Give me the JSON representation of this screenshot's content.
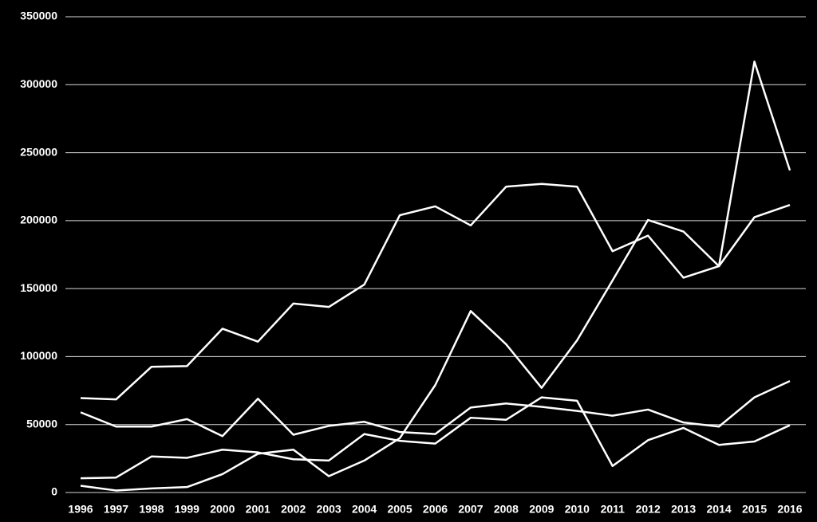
{
  "chart_data": {
    "type": "line",
    "categories": [
      "1996",
      "1997",
      "1998",
      "1999",
      "2000",
      "2001",
      "2002",
      "2003",
      "2004",
      "2005",
      "2006",
      "2007",
      "2008",
      "2009",
      "2010",
      "2011",
      "2012",
      "2013",
      "2014",
      "2015",
      "2016"
    ],
    "series": [
      {
        "color": "#ffffff",
        "values": [
          69500,
          68500,
          92500,
          93000,
          120500,
          111000,
          139000,
          136500,
          153000,
          204000,
          210500,
          196500,
          225000,
          227000,
          225000,
          177500,
          189000,
          158000,
          166500,
          317000,
          237000
        ]
      },
      {
        "color": "#ffffff",
        "values": [
          5000,
          1500,
          3000,
          4000,
          13500,
          28500,
          31500,
          12000,
          23500,
          40000,
          79000,
          133500,
          109000,
          77000,
          112000,
          156000,
          200500,
          192000,
          166500,
          202500,
          211500
        ]
      },
      {
        "color": "#ffffff",
        "values": [
          59000,
          48500,
          48500,
          54000,
          41500,
          69000,
          42500,
          49000,
          52000,
          44500,
          43000,
          62500,
          65500,
          63000,
          60000,
          56500,
          61000,
          51500,
          48500,
          70000,
          82000
        ]
      },
      {
        "color": "#ffffff",
        "values": [
          10500,
          11000,
          26500,
          25500,
          31500,
          29500,
          24500,
          23500,
          43000,
          38000,
          36000,
          55000,
          53500,
          70000,
          67500,
          19500,
          38500,
          47500,
          35000,
          37500,
          49500
        ]
      }
    ],
    "ylim": [
      0,
      350000
    ],
    "yticks": [
      0,
      50000,
      100000,
      150000,
      200000,
      250000,
      300000,
      350000
    ],
    "grid": true
  }
}
